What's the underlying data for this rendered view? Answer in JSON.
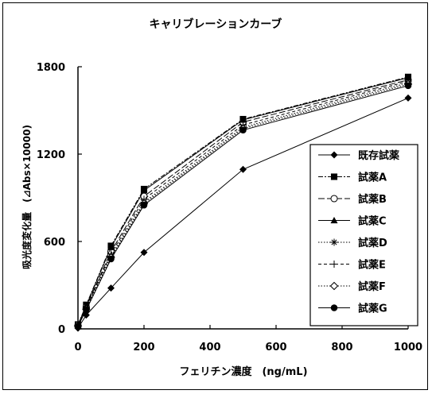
{
  "chart_data": {
    "type": "line",
    "title": "キャリブレーションカーブ",
    "xlabel": "フェリチン濃度　(ng/mL)",
    "ylabel": "吸光度変化量　(⊿Abs×10000)",
    "xlim": [
      0,
      1000
    ],
    "ylim": [
      0,
      1800
    ],
    "xticks": [
      0,
      200,
      400,
      600,
      800,
      1000
    ],
    "yticks": [
      0,
      600,
      1200,
      1800
    ],
    "grid": false,
    "legend_position": "bottom-right",
    "series": [
      {
        "name": "既存試薬",
        "marker": "diamond-filled",
        "dash": "solid",
        "x": [
          0,
          25,
          100,
          200,
          500,
          1000
        ],
        "y": [
          5,
          95,
          280,
          525,
          1095,
          1585
        ]
      },
      {
        "name": "試薬A",
        "marker": "square-filled",
        "dash": "dash-dot",
        "x": [
          0,
          25,
          100,
          200,
          500,
          1000
        ],
        "y": [
          30,
          165,
          570,
          960,
          1440,
          1730
        ]
      },
      {
        "name": "試薬B",
        "marker": "circle-open",
        "dash": "long-dash",
        "x": [
          0,
          25,
          100,
          200,
          500,
          1000
        ],
        "y": [
          25,
          150,
          530,
          910,
          1420,
          1710
        ]
      },
      {
        "name": "試薬C",
        "marker": "triangle-filled",
        "dash": "solid",
        "x": [
          0,
          25,
          100,
          200,
          500,
          1000
        ],
        "y": [
          28,
          160,
          560,
          950,
          1435,
          1725
        ]
      },
      {
        "name": "試薬D",
        "marker": "asterisk",
        "dash": "dotted",
        "x": [
          0,
          25,
          100,
          200,
          500,
          1000
        ],
        "y": [
          22,
          140,
          500,
          870,
          1385,
          1690
        ]
      },
      {
        "name": "試薬E",
        "marker": "plus",
        "dash": "dashed",
        "x": [
          0,
          25,
          100,
          200,
          500,
          1000
        ],
        "y": [
          24,
          145,
          515,
          890,
          1400,
          1700
        ]
      },
      {
        "name": "試薬F",
        "marker": "diamond-open",
        "dash": "dotted",
        "x": [
          0,
          25,
          100,
          200,
          500,
          1000
        ],
        "y": [
          20,
          135,
          490,
          860,
          1375,
          1680
        ]
      },
      {
        "name": "試薬G",
        "marker": "circle-filled",
        "dash": "solid",
        "x": [
          0,
          25,
          100,
          200,
          500,
          1000
        ],
        "y": [
          18,
          130,
          480,
          850,
          1365,
          1670
        ]
      }
    ]
  }
}
